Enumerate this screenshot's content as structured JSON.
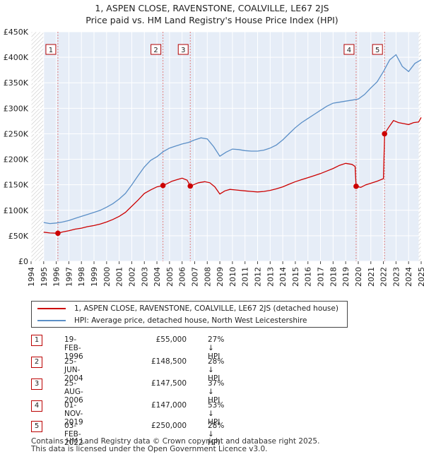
{
  "header": {
    "title": "1, ASPEN CLOSE, RAVENSTONE, COALVILLE, LE67 2JS",
    "subtitle": "Price paid vs. HM Land Registry's House Price Index (HPI)"
  },
  "legend": {
    "property_label": "1, ASPEN CLOSE, RAVENSTONE, COALVILLE, LE67 2JS (detached house)",
    "hpi_label": "HPI: Average price, detached house, North West Leicestershire"
  },
  "colors": {
    "property": "#cc0000",
    "hpi": "#5b8fc7",
    "band": "#e6edf7",
    "marker_line": "#e08080"
  },
  "sales": [
    {
      "num": "1",
      "date": "19-FEB-1996",
      "price": "£55,000",
      "hpi": "27% ↓ HPI"
    },
    {
      "num": "2",
      "date": "25-JUN-2004",
      "price": "£148,500",
      "hpi": "28% ↓ HPI"
    },
    {
      "num": "3",
      "date": "25-AUG-2006",
      "price": "£147,500",
      "hpi": "37% ↓ HPI"
    },
    {
      "num": "4",
      "date": "01-NOV-2019",
      "price": "£147,000",
      "hpi": "53% ↓ HPI"
    },
    {
      "num": "5",
      "date": "03-FEB-2022",
      "price": "£250,000",
      "hpi": "28% ↓ HPI"
    }
  ],
  "footer": {
    "line1": "Contains HM Land Registry data © Crown copyright and database right 2025.",
    "line2": "This data is licensed under the Open Government Licence v3.0."
  },
  "chart_data": {
    "type": "line",
    "title": "1, ASPEN CLOSE, RAVENSTONE, COALVILLE, LE67 2JS",
    "xlabel": "",
    "ylabel": "",
    "xlim": [
      1994,
      2025
    ],
    "ylim": [
      0,
      450000
    ],
    "y_ticks": [
      0,
      50000,
      100000,
      150000,
      200000,
      250000,
      300000,
      350000,
      400000,
      450000
    ],
    "y_tick_labels": [
      "£0",
      "£50K",
      "£100K",
      "£150K",
      "£200K",
      "£250K",
      "£300K",
      "£350K",
      "£400K",
      "£450K"
    ],
    "x_tick_labels": [
      "1994",
      "1995",
      "1996",
      "1997",
      "1998",
      "1999",
      "2000",
      "2001",
      "2002",
      "2003",
      "2004",
      "2005",
      "2006",
      "2007",
      "2008",
      "2009",
      "2010",
      "2011",
      "2012",
      "2013",
      "2014",
      "2015",
      "2016",
      "2017",
      "2018",
      "2019",
      "2020",
      "2021",
      "2022",
      "2023",
      "2024",
      "2025"
    ],
    "grid": true,
    "hatched_regions": [
      [
        1994,
        1995
      ],
      [
        2024.8,
        2025
      ]
    ],
    "series": [
      {
        "name": "1, ASPEN CLOSE, RAVENSTONE, COALVILLE, LE67 2JS (detached house)",
        "x": [
          1995.0,
          1995.5,
          1996.13,
          1996.5,
          1997,
          1997.5,
          1998,
          1998.5,
          1999,
          1999.5,
          2000,
          2000.5,
          2001,
          2001.5,
          2002,
          2002.5,
          2003,
          2003.5,
          2004,
          2004.48,
          2004.8,
          2005.2,
          2005.6,
          2006,
          2006.4,
          2006.65,
          2006.9,
          2007.3,
          2007.8,
          2008.2,
          2008.6,
          2009.0,
          2009.4,
          2009.8,
          2010.2,
          2010.6,
          2011.0,
          2011.5,
          2012.0,
          2012.5,
          2013.0,
          2013.5,
          2014.0,
          2014.5,
          2015.0,
          2015.5,
          2016.0,
          2016.5,
          2017.0,
          2017.5,
          2018.0,
          2018.5,
          2019.0,
          2019.5,
          2019.75,
          2019.83,
          2020.2,
          2020.6,
          2021.0,
          2021.5,
          2022.0,
          2022.09,
          2022.4,
          2022.8,
          2023.2,
          2023.6,
          2024.0,
          2024.4,
          2024.8,
          2025.0
        ],
        "y": [
          57000,
          55500,
          55000,
          57500,
          60000,
          63000,
          65000,
          68000,
          70000,
          73000,
          77000,
          82000,
          88000,
          96000,
          108000,
          120000,
          133000,
          140000,
          146000,
          148500,
          152000,
          157000,
          160000,
          163000,
          159000,
          147500,
          150000,
          154000,
          156000,
          154000,
          146000,
          132000,
          138000,
          141000,
          140000,
          139000,
          138000,
          137000,
          136000,
          137000,
          139000,
          142000,
          146000,
          151000,
          156000,
          160000,
          164000,
          168000,
          172000,
          177000,
          182000,
          188000,
          192000,
          190000,
          186000,
          147000,
          145000,
          150000,
          153000,
          157000,
          162000,
          250000,
          262000,
          276000,
          272000,
          270000,
          268000,
          272000,
          273000,
          282000
        ]
      },
      {
        "name": "HPI: Average price, detached house, North West Leicestershire",
        "x": [
          1995.0,
          1995.5,
          1996.0,
          1996.5,
          1997,
          1997.5,
          1998,
          1998.5,
          1999,
          1999.5,
          2000,
          2000.5,
          2001,
          2001.5,
          2002,
          2002.5,
          2003,
          2003.5,
          2004,
          2004.5,
          2005,
          2005.5,
          2006,
          2006.5,
          2007,
          2007.5,
          2008,
          2008.5,
          2009,
          2009.5,
          2010,
          2010.5,
          2011,
          2011.5,
          2012,
          2012.5,
          2013,
          2013.5,
          2014,
          2014.5,
          2015,
          2015.5,
          2016,
          2016.5,
          2017,
          2017.5,
          2018,
          2018.5,
          2019,
          2019.5,
          2020,
          2020.5,
          2021,
          2021.5,
          2022,
          2022.5,
          2023,
          2023.5,
          2024,
          2024.5,
          2025.0
        ],
        "y": [
          76000,
          74000,
          75000,
          77000,
          80000,
          84000,
          88000,
          92000,
          96000,
          100000,
          106000,
          113000,
          122000,
          133000,
          150000,
          168000,
          185000,
          198000,
          205000,
          215000,
          222000,
          226000,
          230000,
          233000,
          238000,
          242000,
          240000,
          225000,
          206000,
          214000,
          220000,
          219000,
          217000,
          216000,
          216000,
          218000,
          222000,
          228000,
          238000,
          250000,
          262000,
          272000,
          280000,
          288000,
          296000,
          304000,
          310000,
          312000,
          314000,
          316000,
          318000,
          327000,
          340000,
          352000,
          372000,
          395000,
          405000,
          382000,
          372000,
          388000,
          395000
        ]
      }
    ],
    "sale_markers": [
      {
        "label": "1",
        "x": 1996.13,
        "y": 55000
      },
      {
        "label": "2",
        "x": 2004.48,
        "y": 148500
      },
      {
        "label": "3",
        "x": 2006.65,
        "y": 147500
      },
      {
        "label": "4",
        "x": 2019.83,
        "y": 147000
      },
      {
        "label": "5",
        "x": 2022.09,
        "y": 250000
      }
    ]
  }
}
